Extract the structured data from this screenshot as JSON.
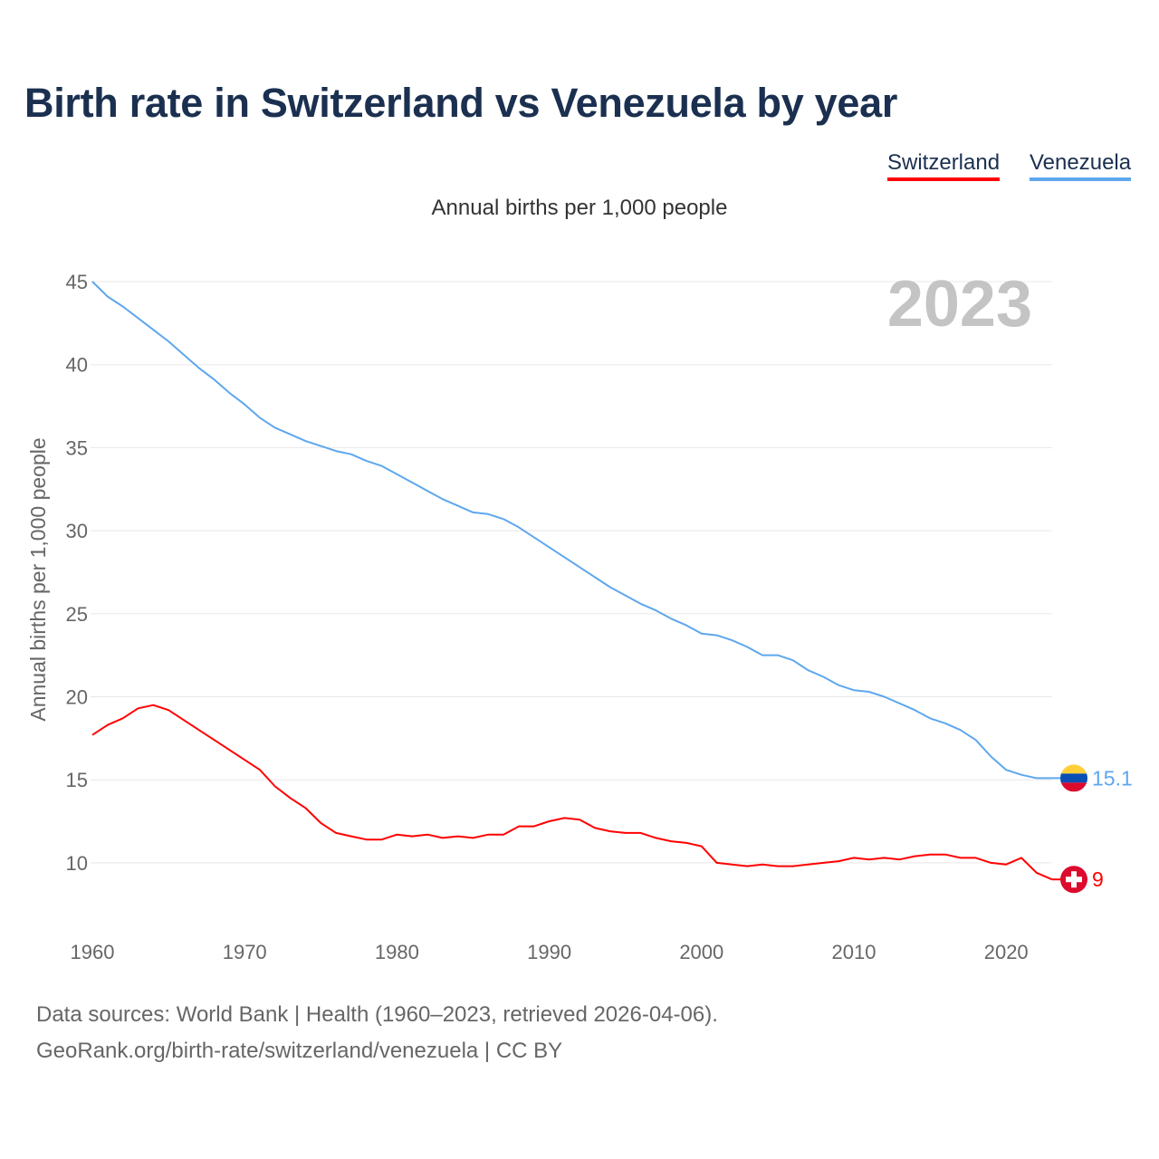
{
  "title": "Birth rate in Switzerland vs Venezuela by year",
  "legend": [
    "Switzerland",
    "Venezuela"
  ],
  "footer": {
    "source": "Data sources: World Bank | Health (1960–2023, retrieved 2026-04-06).",
    "credit": "GeoRank.org/birth-rate/switzerland/venezuela | CC BY"
  },
  "chart_data": {
    "type": "line",
    "title": "Birth rate in Switzerland vs Venezuela by year",
    "subtitle": "Annual births per 1,000 people",
    "ylabel": "Annual births per 1,000 people",
    "xlabel": "",
    "year_watermark": "2023",
    "xlim": [
      1960,
      2023
    ],
    "ylim": [
      6.5,
      45
    ],
    "yticks": [
      10,
      15,
      20,
      25,
      30,
      35,
      40,
      45
    ],
    "xticks": [
      1960,
      1970,
      1980,
      1990,
      2000,
      2010,
      2020
    ],
    "grid": true,
    "legend_position": "top-right",
    "x_start": 1960,
    "series": [
      {
        "name": "Switzerland",
        "color": "#ff0000",
        "end_label": "9",
        "flag": "switzerland-flag",
        "values": [
          17.7,
          18.3,
          18.7,
          19.3,
          19.5,
          19.2,
          18.6,
          18.0,
          17.4,
          16.8,
          16.2,
          15.6,
          14.6,
          13.9,
          13.3,
          12.4,
          11.8,
          11.6,
          11.4,
          11.4,
          11.7,
          11.6,
          11.7,
          11.5,
          11.6,
          11.5,
          11.7,
          11.7,
          12.2,
          12.2,
          12.5,
          12.7,
          12.6,
          12.1,
          11.9,
          11.8,
          11.8,
          11.5,
          11.3,
          11.2,
          11.0,
          10.0,
          9.9,
          9.8,
          9.9,
          9.8,
          9.8,
          9.9,
          10.0,
          10.1,
          10.3,
          10.2,
          10.3,
          10.2,
          10.4,
          10.5,
          10.5,
          10.3,
          10.3,
          10.0,
          9.9,
          10.3,
          9.4,
          9.0
        ]
      },
      {
        "name": "Venezuela",
        "color": "#5ea7ee",
        "end_label": "15.1",
        "flag": "venezuela-flag",
        "values": [
          45.0,
          44.1,
          43.5,
          42.8,
          42.1,
          41.4,
          40.6,
          39.8,
          39.1,
          38.3,
          37.6,
          36.8,
          36.2,
          35.8,
          35.4,
          35.1,
          34.8,
          34.6,
          34.2,
          33.9,
          33.4,
          32.9,
          32.4,
          31.9,
          31.5,
          31.1,
          31.0,
          30.7,
          30.2,
          29.6,
          29.0,
          28.4,
          27.8,
          27.2,
          26.6,
          26.1,
          25.6,
          25.2,
          24.7,
          24.3,
          23.8,
          23.7,
          23.4,
          23.0,
          22.5,
          22.5,
          22.2,
          21.6,
          21.2,
          20.7,
          20.4,
          20.3,
          20.0,
          19.6,
          19.2,
          18.7,
          18.4,
          18.0,
          17.4,
          16.4,
          15.6,
          15.3,
          15.1,
          15.1
        ]
      }
    ]
  }
}
